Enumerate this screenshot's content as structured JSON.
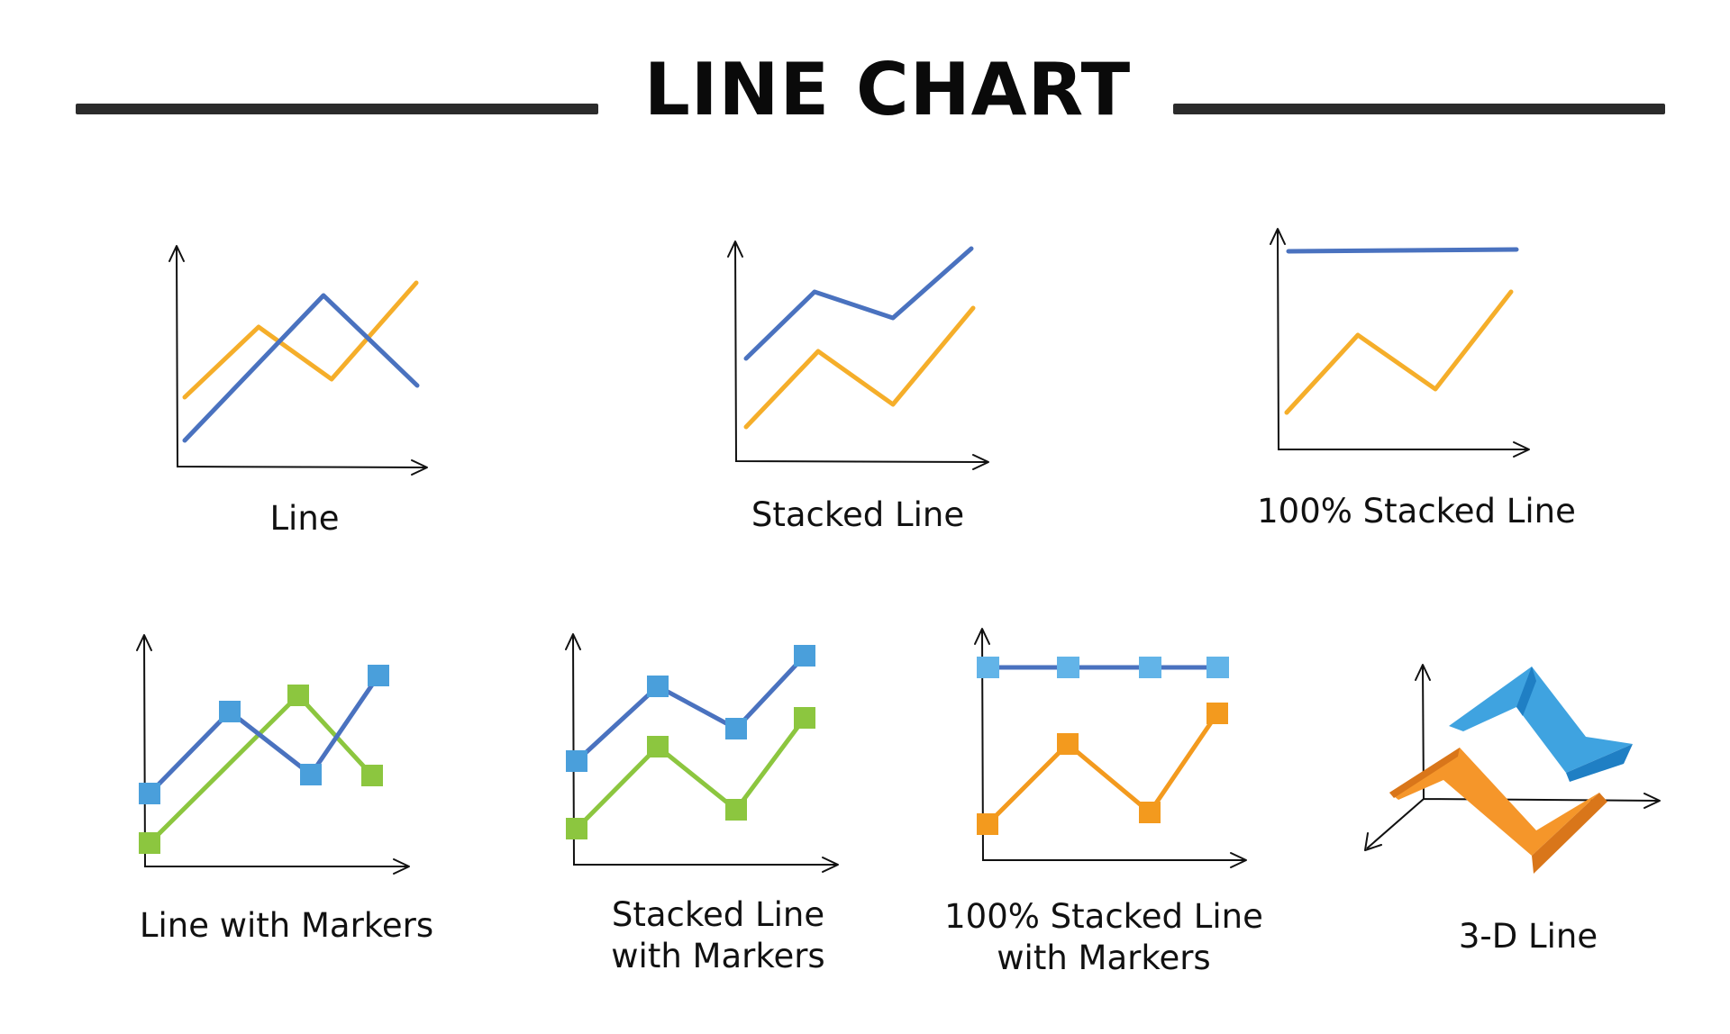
{
  "page": {
    "title": "LINE CHART"
  },
  "colors": {
    "blue_line": "#4a72bf",
    "orange_line": "#f5ae2a",
    "marker_blue": "#4a9fdb",
    "marker_green": "#8cc63f",
    "marker_light_blue": "#62b4e8",
    "marker_orange": "#f39a1e",
    "green_line": "#8cc63f",
    "threeD_blue_top": "#3fa3e0",
    "threeD_blue_side": "#1f7fc4",
    "threeD_orange_top": "#f5962a",
    "threeD_orange_side": "#d9761a"
  },
  "charts": [
    {
      "key": "line",
      "label": "Line"
    },
    {
      "key": "stacked_line",
      "label": "Stacked Line"
    },
    {
      "key": "stacked100_line",
      "label": "100% Stacked Line"
    },
    {
      "key": "line_markers",
      "label": "Line with Markers"
    },
    {
      "key": "stacked_line_markers",
      "label_line1": "Stacked Line",
      "label_line2": "with Markers"
    },
    {
      "key": "stacked100_line_markers",
      "label_line1": "100% Stacked Line",
      "label_line2": "with Markers"
    },
    {
      "key": "line_3d",
      "label": "3-D Line"
    }
  ]
}
